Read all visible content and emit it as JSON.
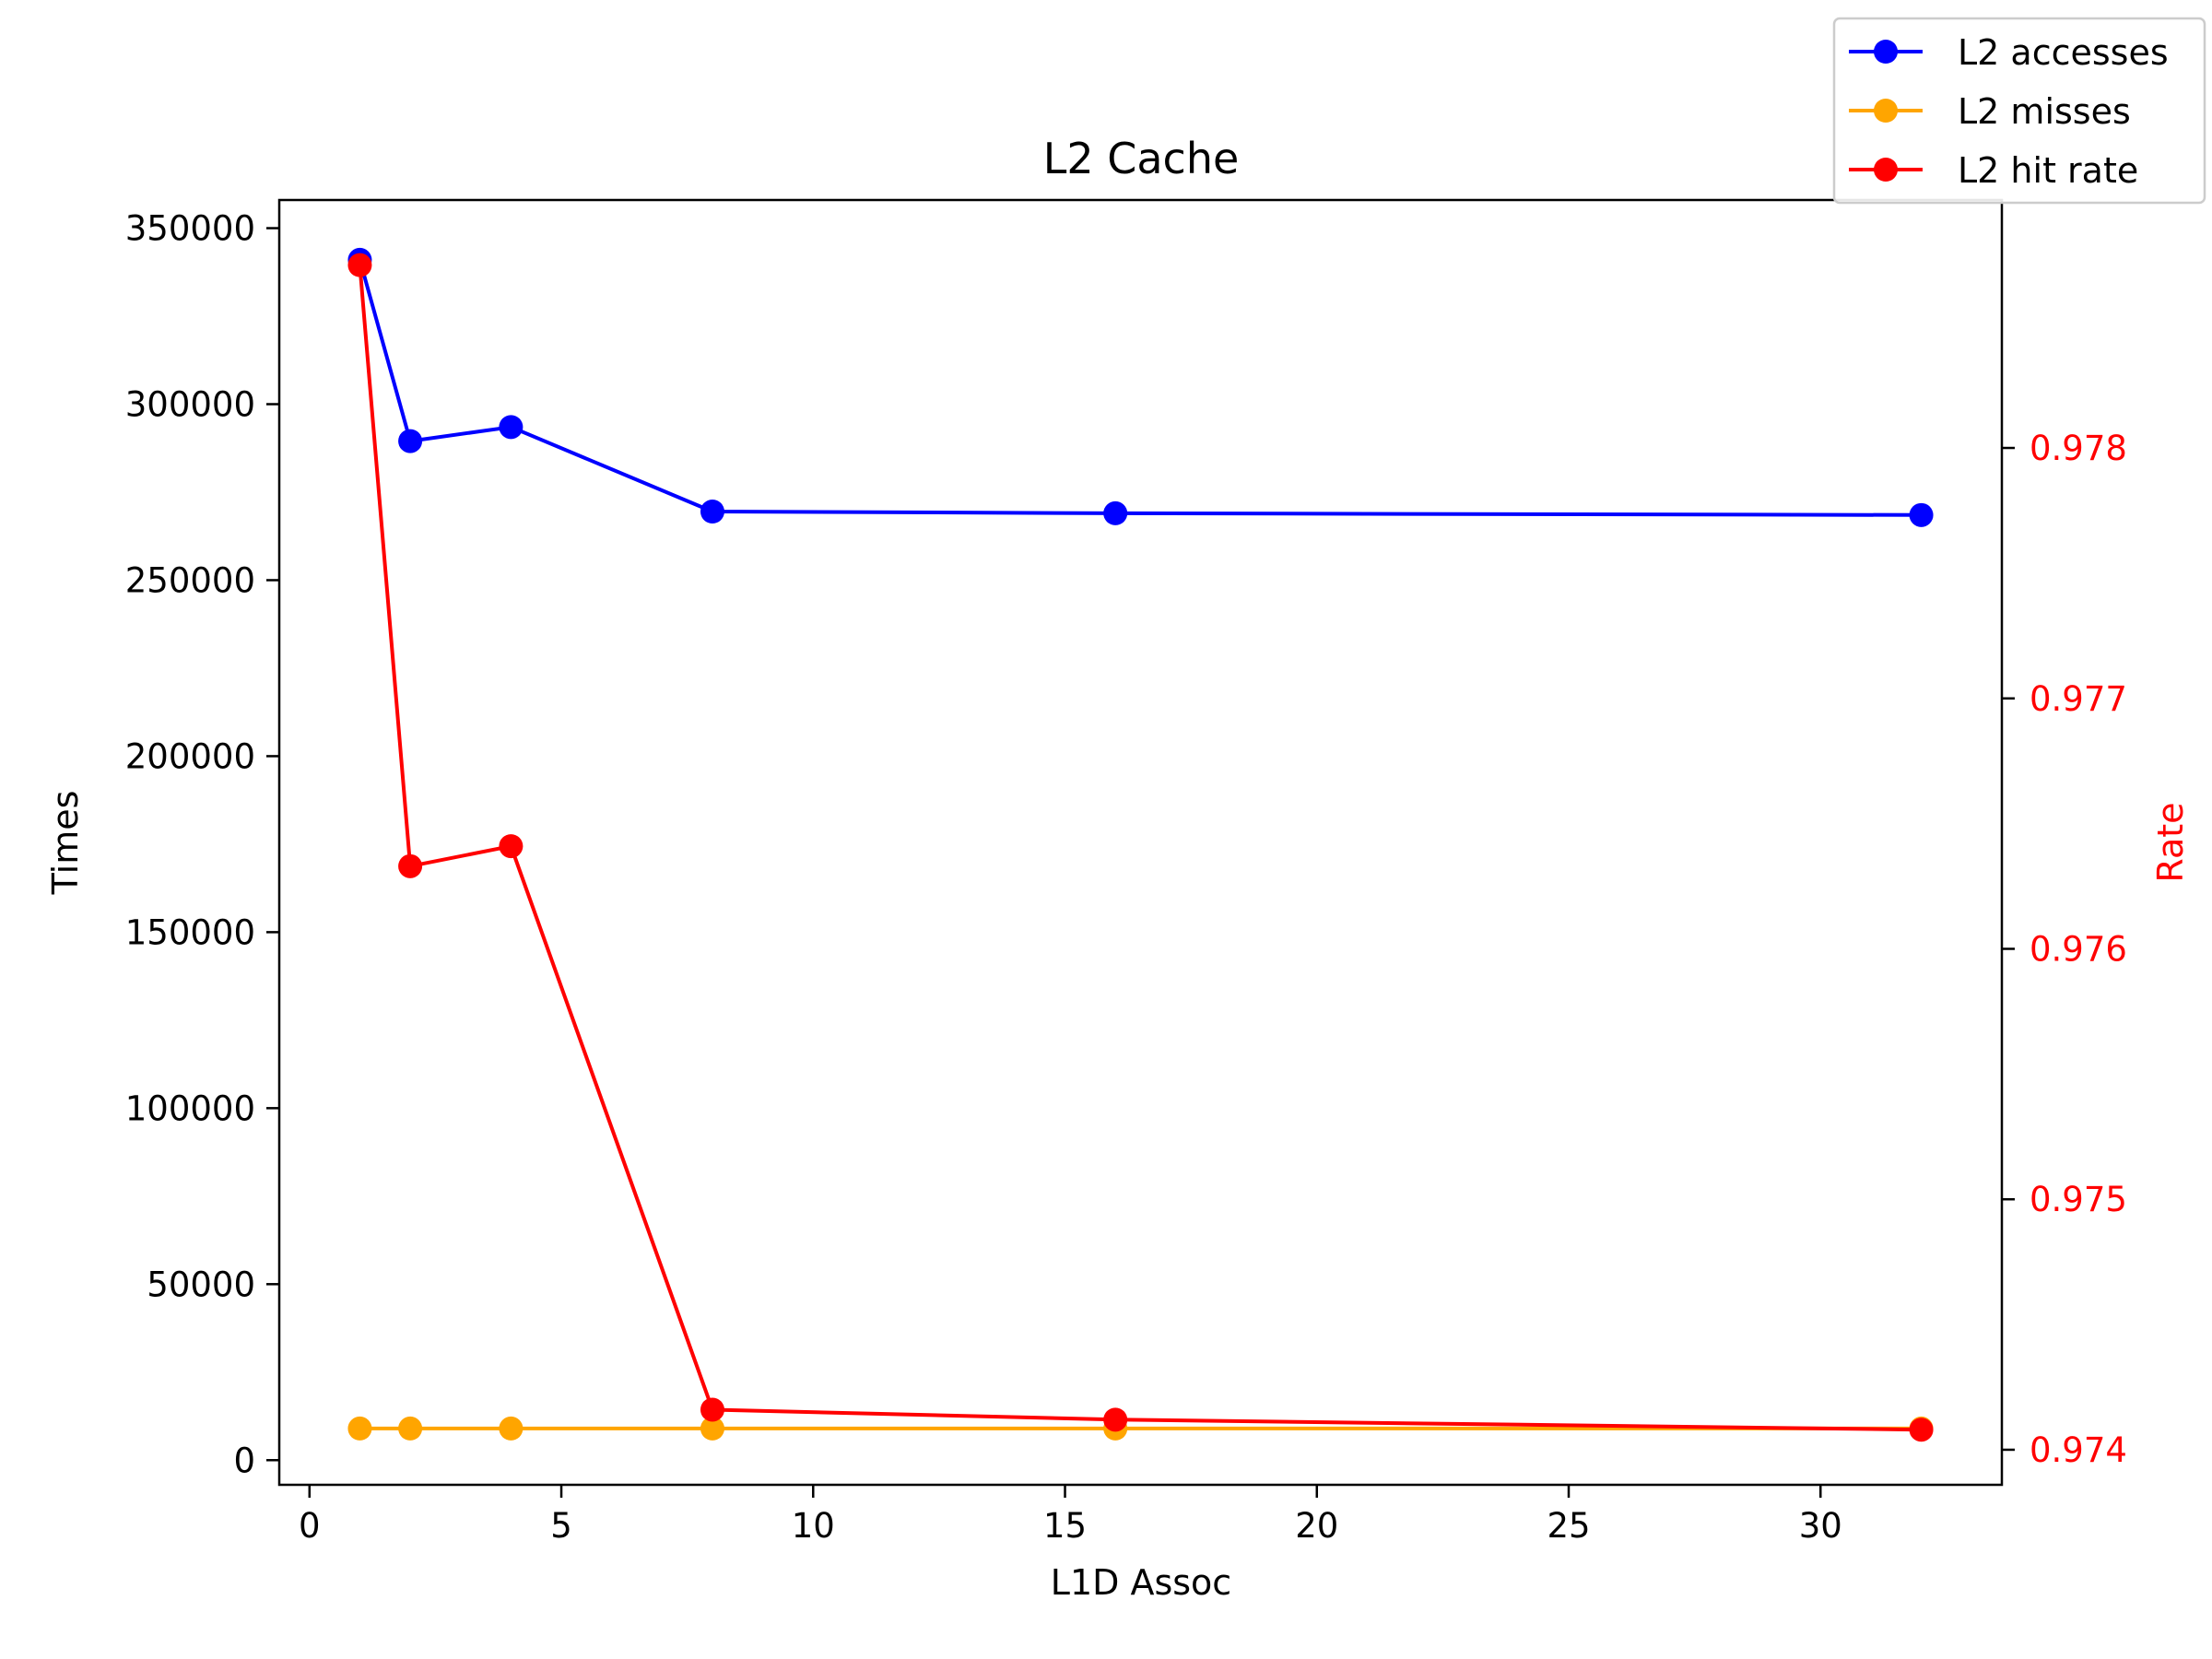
{
  "chart_data": {
    "type": "line",
    "title": "L2 Cache",
    "xlabel": "L1D Assoc",
    "ylabel_left": "Times",
    "ylabel_right": "Rate",
    "x": [
      1,
      2,
      4,
      8,
      16,
      32
    ],
    "xlim": [
      -0.6,
      33.6
    ],
    "xticks": [
      "0",
      "5",
      "10",
      "15",
      "20",
      "25",
      "30"
    ],
    "ylim_left": [
      -7000,
      358000
    ],
    "yticks_left": [
      "0",
      "50000",
      "100000",
      "150000",
      "200000",
      "250000",
      "300000",
      "350000"
    ],
    "ylim_right": [
      0.97386,
      0.97899
    ],
    "yticks_right": [
      "0.974",
      "0.975",
      "0.976",
      "0.977",
      "0.978"
    ],
    "right_axis_color": "#ff0000",
    "grid": false,
    "legend_position": "top-right",
    "series": [
      {
        "name": "L2 accesses",
        "axis": "left",
        "color": "#0000ff",
        "values": [
          341000,
          289500,
          293500,
          269500,
          269000,
          268500
        ]
      },
      {
        "name": "L2 misses",
        "axis": "left",
        "color": "#ffa500",
        "values": [
          9000,
          9000,
          9000,
          9000,
          9000,
          9000
        ]
      },
      {
        "name": "L2 hit rate",
        "axis": "right",
        "color": "#ff0000",
        "values": [
          0.97873,
          0.97633,
          0.97641,
          0.97416,
          0.97412,
          0.97408
        ]
      }
    ]
  }
}
